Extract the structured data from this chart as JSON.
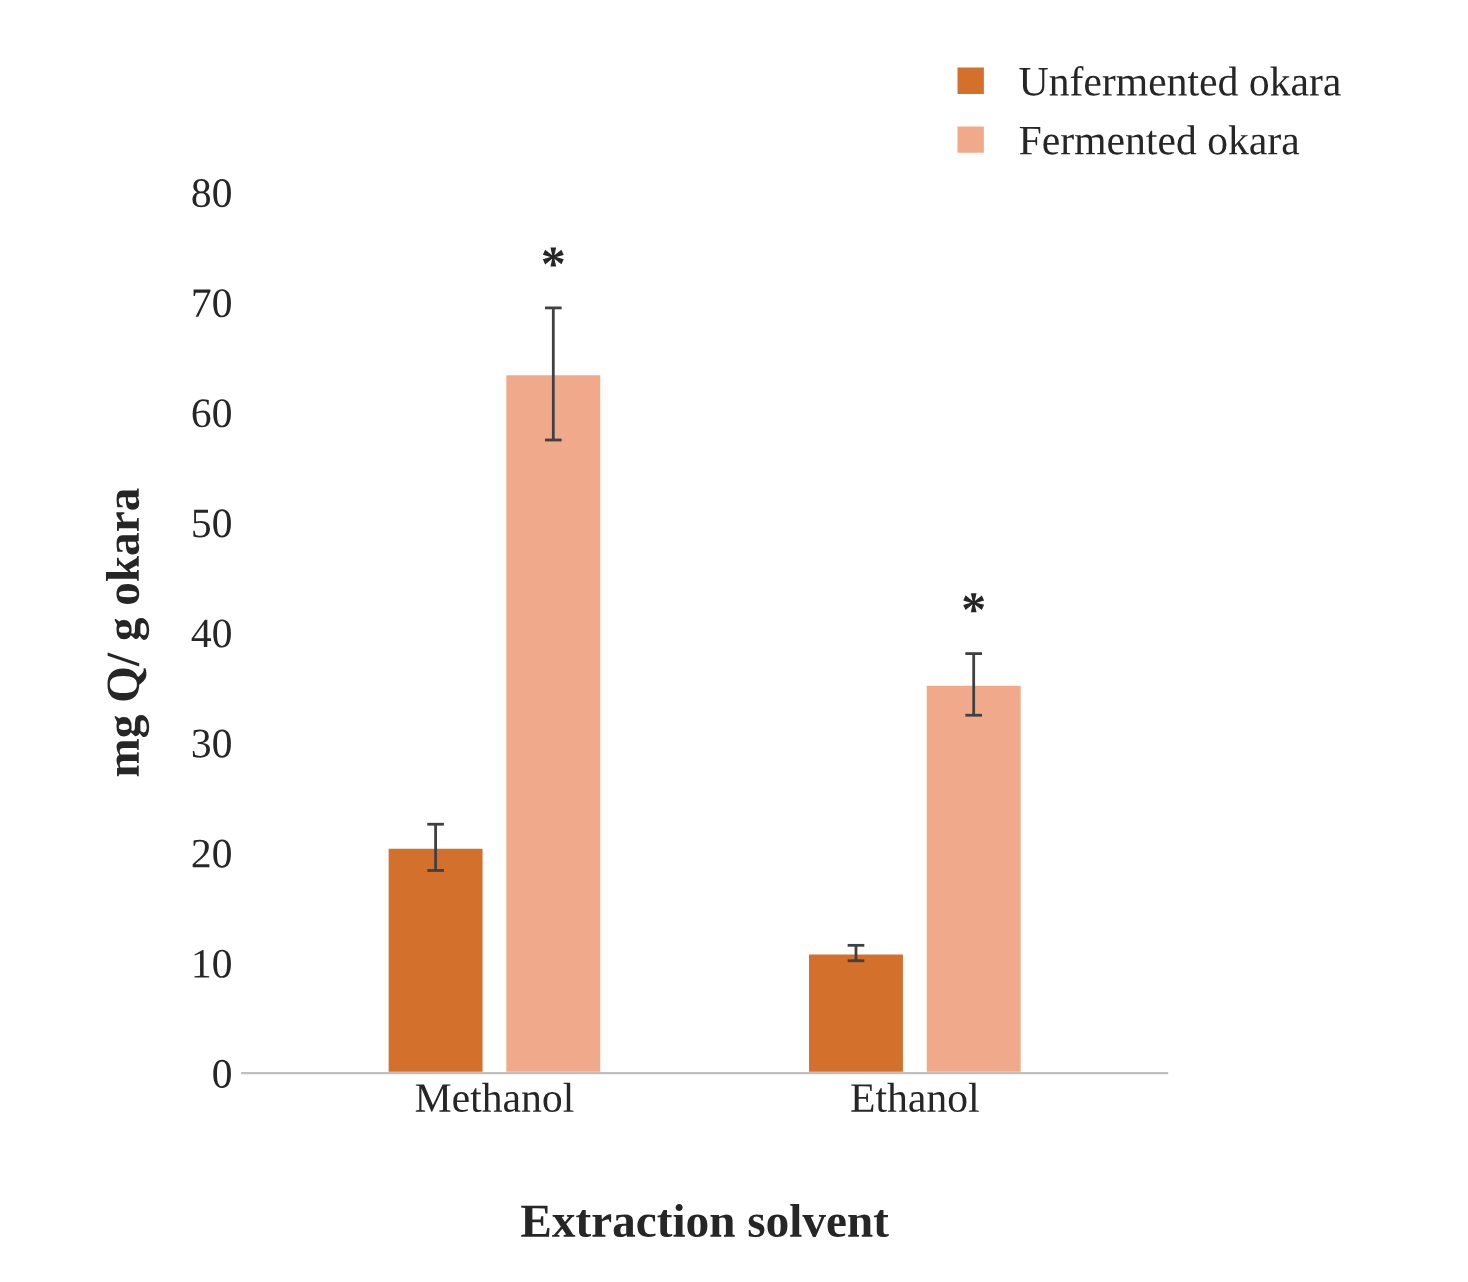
{
  "chart_data": {
    "type": "bar",
    "xlabel": "Extraction solvent",
    "ylabel": "mg Q/ g okara",
    "categories": [
      "Methanol",
      "Ethanol"
    ],
    "series": [
      {
        "name": "Unfermented okara",
        "color": "#d2702c",
        "values": [
          20.5,
          10.9
        ],
        "errors": [
          2.1,
          0.7
        ]
      },
      {
        "name": "Fermented okara",
        "color": "#f0a98a",
        "values": [
          63.5,
          35.3
        ],
        "errors": [
          6,
          2.8
        ]
      }
    ],
    "ylim": [
      0,
      80
    ],
    "yticks": [
      0,
      10,
      20,
      30,
      40,
      50,
      60,
      70,
      80
    ],
    "grid": false,
    "legend": "top right",
    "annotations": [
      "*",
      "*"
    ]
  }
}
